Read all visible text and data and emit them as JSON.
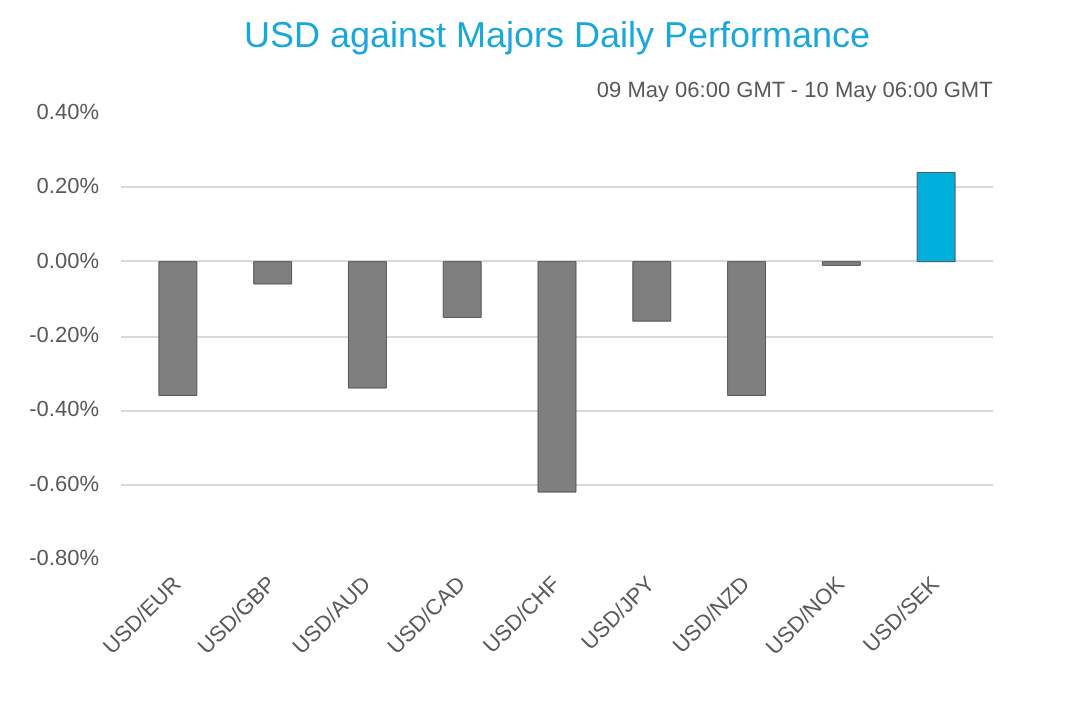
{
  "chart_data": {
    "type": "bar",
    "title": "USD against Majors Daily Performance",
    "subtitle": "09 May 06:00 GMT - 10 May 06:00 GMT",
    "categories": [
      "USD/EUR",
      "USD/GBP",
      "USD/AUD",
      "USD/CAD",
      "USD/CHF",
      "USD/JPY",
      "USD/NZD",
      "USD/NOK",
      "USD/SEK"
    ],
    "values": [
      -0.36,
      -0.06,
      -0.34,
      -0.15,
      -0.62,
      -0.16,
      -0.36,
      -0.01,
      0.24
    ],
    "colors": [
      "#7f7f7f",
      "#7f7f7f",
      "#7f7f7f",
      "#7f7f7f",
      "#7f7f7f",
      "#7f7f7f",
      "#7f7f7f",
      "#7f7f7f",
      "#00b0dc"
    ],
    "ylim": [
      -0.8,
      0.4
    ],
    "yticks": [
      {
        "value": -0.8,
        "label": "-0.80%"
      },
      {
        "value": -0.6,
        "label": "-0.60%"
      },
      {
        "value": -0.4,
        "label": "-0.40%"
      },
      {
        "value": -0.2,
        "label": "-0.20%"
      },
      {
        "value": 0,
        "label": "0.00%"
      },
      {
        "value": 0.2,
        "label": "0.20%"
      },
      {
        "value": 0.4,
        "label": "0.40%"
      }
    ],
    "grid": "y"
  }
}
